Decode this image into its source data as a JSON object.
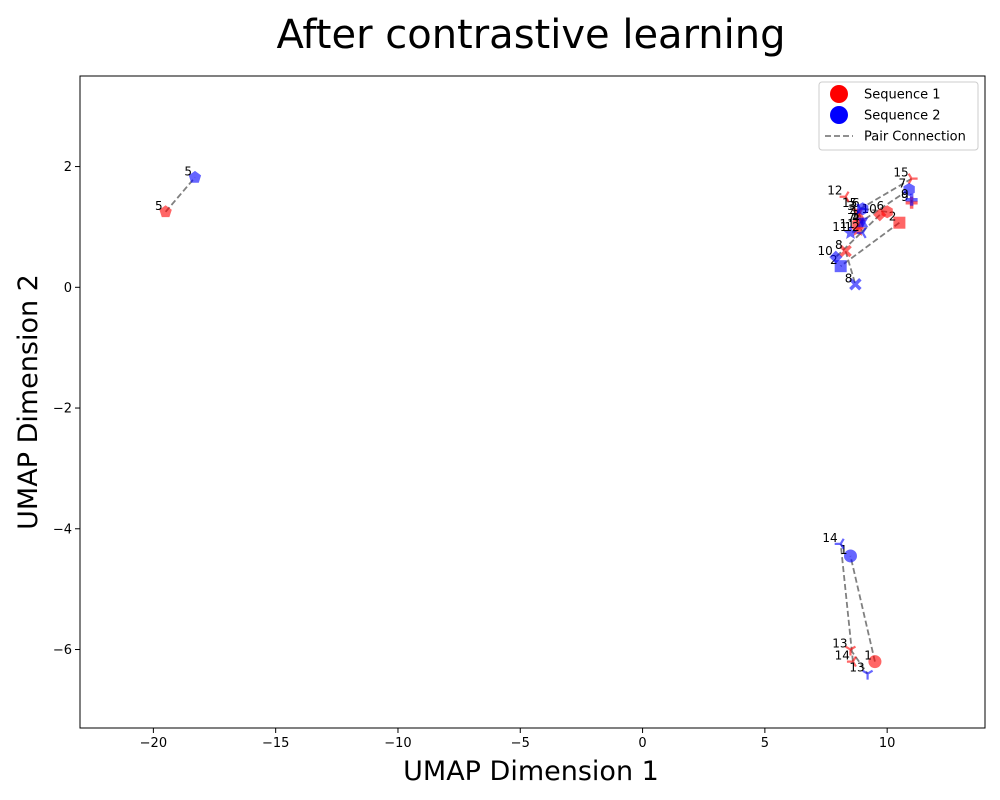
{
  "chart_data": {
    "type": "scatter",
    "title": "After contrastive learning",
    "xlabel": "UMAP Dimension 1",
    "ylabel": "UMAP Dimension 2",
    "xlim": [
      -23,
      14
    ],
    "ylim": [
      -7.3,
      3.5
    ],
    "xticks": [
      -20,
      -15,
      -10,
      -5,
      0,
      5,
      10
    ],
    "yticks": [
      -6,
      -4,
      -2,
      0,
      2
    ],
    "xtick_labels": [
      "−20",
      "−15",
      "−10",
      "−5",
      "0",
      "5",
      "10"
    ],
    "ytick_labels": [
      "−6",
      "−4",
      "−2",
      "0",
      "2"
    ],
    "grid": false,
    "legend_position": "top-right",
    "legend": [
      {
        "label": "Sequence 1",
        "kind": "dot",
        "color": "#ff0000"
      },
      {
        "label": "Sequence 2",
        "kind": "dot",
        "color": "#0000ff"
      },
      {
        "label": "Pair Connection",
        "kind": "dashed",
        "color": "#808080"
      }
    ],
    "series": [
      {
        "name": "Sequence 1",
        "color": "#ff0000",
        "points": [
          {
            "id": "1",
            "x": 9.5,
            "y": -6.2,
            "marker": "circle"
          },
          {
            "id": "2",
            "x": 10.5,
            "y": 1.07,
            "marker": "square"
          },
          {
            "id": "3",
            "x": 8.8,
            "y": 1.25,
            "marker": "triangle-down"
          },
          {
            "id": "4",
            "x": 8.9,
            "y": 1.15,
            "marker": "triangle-up"
          },
          {
            "id": "5",
            "x": -19.5,
            "y": 1.25,
            "marker": "pentagon"
          },
          {
            "id": "6",
            "x": 10.0,
            "y": 1.25,
            "marker": "hexagon"
          },
          {
            "id": "7",
            "x": 8.8,
            "y": 1.05,
            "marker": "hexagon"
          },
          {
            "id": "8",
            "x": 8.3,
            "y": 0.6,
            "marker": "x"
          },
          {
            "id": "9",
            "x": 11.0,
            "y": 1.4,
            "marker": "plus"
          },
          {
            "id": "10",
            "x": 9.7,
            "y": 1.2,
            "marker": "diamond"
          },
          {
            "id": "11",
            "x": 8.8,
            "y": 0.95,
            "marker": "star"
          },
          {
            "id": "12",
            "x": 8.3,
            "y": 1.5,
            "marker": "tri-left"
          },
          {
            "id": "13",
            "x": 8.5,
            "y": -6.0,
            "marker": "tri-down"
          },
          {
            "id": "14",
            "x": 8.6,
            "y": -6.2,
            "marker": "tri-left"
          },
          {
            "id": "15",
            "x": 11.0,
            "y": 1.8,
            "marker": "tri-right"
          }
        ]
      },
      {
        "name": "Sequence 2",
        "color": "#0000ff",
        "points": [
          {
            "id": "1",
            "x": 8.5,
            "y": -4.45,
            "marker": "circle"
          },
          {
            "id": "2",
            "x": 8.1,
            "y": 0.35,
            "marker": "square"
          },
          {
            "id": "3",
            "x": 9.0,
            "y": 1.1,
            "marker": "triangle-down"
          },
          {
            "id": "4",
            "x": 9.0,
            "y": 1.05,
            "marker": "triangle-up"
          },
          {
            "id": "5",
            "x": -18.3,
            "y": 1.82,
            "marker": "pentagon"
          },
          {
            "id": "6",
            "x": 9.0,
            "y": 1.3,
            "marker": "hexagon"
          },
          {
            "id": "7",
            "x": 10.9,
            "y": 1.62,
            "marker": "hexagon"
          },
          {
            "id": "8",
            "x": 8.7,
            "y": 0.05,
            "marker": "x"
          },
          {
            "id": "9",
            "x": 11.0,
            "y": 1.45,
            "marker": "plus"
          },
          {
            "id": "10",
            "x": 7.9,
            "y": 0.5,
            "marker": "diamond"
          },
          {
            "id": "11",
            "x": 8.5,
            "y": 0.9,
            "marker": "star"
          },
          {
            "id": "12",
            "x": 9.0,
            "y": 0.9,
            "marker": "tri-left"
          },
          {
            "id": "13",
            "x": 9.2,
            "y": -6.4,
            "marker": "tri-down"
          },
          {
            "id": "14",
            "x": 8.1,
            "y": -4.25,
            "marker": "tri-left"
          },
          {
            "id": "15",
            "x": 8.9,
            "y": 1.3,
            "marker": "tri-right"
          }
        ]
      }
    ],
    "pairs": [
      "1",
      "2",
      "3",
      "4",
      "5",
      "6",
      "7",
      "8",
      "9",
      "10",
      "11",
      "12",
      "13",
      "14",
      "15"
    ]
  }
}
